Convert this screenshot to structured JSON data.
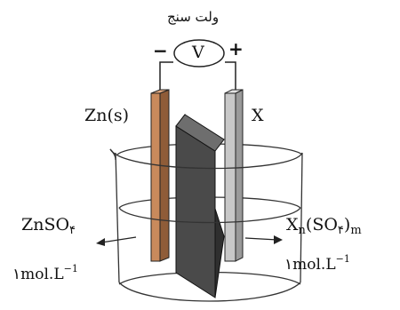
{
  "voltmeter": {
    "caption": "ولت سنج",
    "symbol": "V",
    "negative_sign": "−",
    "positive_sign": "+"
  },
  "left_electrode": {
    "label": "Zn(s)",
    "color": "#c98a5c"
  },
  "right_electrode": {
    "label": "X",
    "color": "#c8c8c8"
  },
  "separator": {
    "color": "#4a4a4a"
  },
  "left_solution": {
    "formula_base": "ZnSO",
    "formula_subscript": "۴",
    "concentration_prefix": "۱mol.L",
    "concentration_exponent": "−1"
  },
  "right_solution": {
    "formula_base": "X",
    "formula_sub_n": "n",
    "formula_mid": "(SO",
    "formula_subscript": "۴",
    "formula_close": ")",
    "formula_sub_m": "m",
    "concentration_prefix": "۱mol.L",
    "concentration_exponent": "−1"
  }
}
